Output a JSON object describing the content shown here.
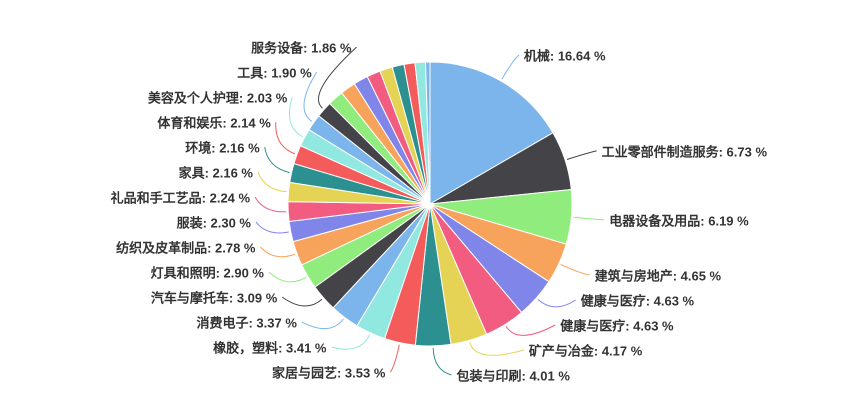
{
  "page": {
    "background": "#ffffff"
  },
  "chart_data": {
    "type": "pie",
    "title": "",
    "legend": "none",
    "grid": false,
    "label_separator": ": ",
    "label_suffix": " %",
    "label_color": "#333333",
    "palette": [
      "#7cb5ec",
      "#434348",
      "#90ed7d",
      "#f7a35c",
      "#8085e9",
      "#f15c80",
      "#e4d354",
      "#2b908f",
      "#f45b5b",
      "#91e8e1"
    ],
    "slices": [
      {
        "name": "机械",
        "value": 16.64,
        "labeled": true
      },
      {
        "name": "工业零部件制造服务",
        "value": 6.73,
        "labeled": true
      },
      {
        "name": "电器设备及用品",
        "value": 6.19,
        "labeled": true
      },
      {
        "name": "建筑与房地产",
        "value": 4.65,
        "labeled": true
      },
      {
        "name": "健康与医疗",
        "value": 4.63,
        "labeled": true
      },
      {
        "name": "健康与医疗",
        "value": 4.63,
        "labeled": true
      },
      {
        "name": "矿产与冶金",
        "value": 4.17,
        "labeled": true
      },
      {
        "name": "包装与印刷",
        "value": 4.01,
        "labeled": true
      },
      {
        "name": "家居与园艺",
        "value": 3.53,
        "labeled": true
      },
      {
        "name": "橡胶，塑料",
        "value": 3.41,
        "labeled": true
      },
      {
        "name": "消费电子",
        "value": 3.37,
        "labeled": true
      },
      {
        "name": "汽车与摩托车",
        "value": 3.09,
        "labeled": true
      },
      {
        "name": "灯具和照明",
        "value": 2.9,
        "labeled": true
      },
      {
        "name": "纺织及皮革制品",
        "value": 2.78,
        "labeled": true
      },
      {
        "name": "服装",
        "value": 2.3,
        "labeled": true
      },
      {
        "name": "礼品和手工艺品",
        "value": 2.24,
        "labeled": true
      },
      {
        "name": "家具",
        "value": 2.16,
        "labeled": true
      },
      {
        "name": "环境",
        "value": 2.16,
        "labeled": true
      },
      {
        "name": "体育和娱乐",
        "value": 2.14,
        "labeled": true
      },
      {
        "name": "美容及个人护理",
        "value": 2.03,
        "labeled": true
      },
      {
        "name": "工具",
        "value": 1.9,
        "labeled": true
      },
      {
        "name": "服务设备",
        "value": 1.86,
        "labeled": true
      },
      {
        "name": "",
        "value": 1.8,
        "labeled": false
      },
      {
        "name": "",
        "value": 1.75,
        "labeled": false
      },
      {
        "name": "",
        "value": 1.65,
        "labeled": false
      },
      {
        "name": "",
        "value": 1.55,
        "labeled": false
      },
      {
        "name": "",
        "value": 1.45,
        "labeled": false
      },
      {
        "name": "",
        "value": 1.35,
        "labeled": false
      },
      {
        "name": "",
        "value": 1.25,
        "labeled": false
      },
      {
        "name": "",
        "value": 1.18,
        "labeled": false
      },
      {
        "name": "",
        "value": 0.5,
        "labeled": false
      }
    ]
  }
}
